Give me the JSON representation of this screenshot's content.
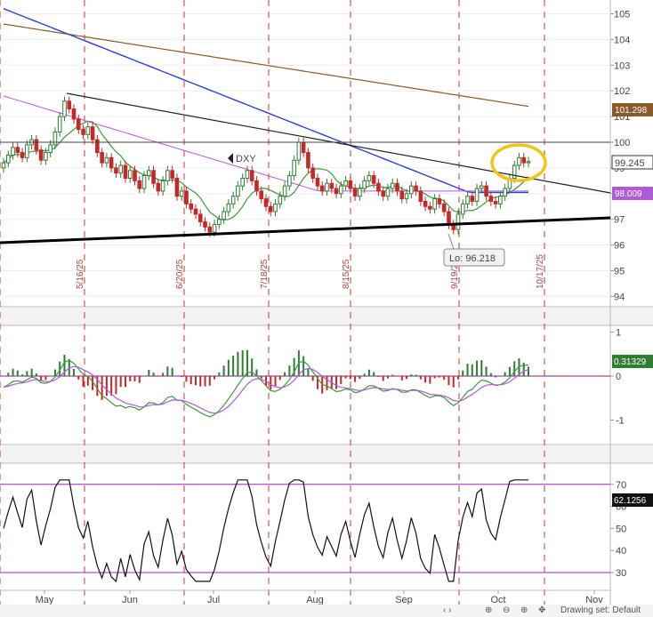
{
  "chart_data": [
    {
      "type": "candlestick",
      "symbol": "DXY",
      "y_ticks": [
        "94",
        "95",
        "96",
        "97",
        "98",
        "99",
        "100",
        "101",
        "102",
        "103",
        "104",
        "105"
      ],
      "last_price": "99.245",
      "ma_value": "98.009",
      "ma_long_value": "101.298",
      "low_label": "Lo: 96.218",
      "resistance_level": 100,
      "date_markers": [
        "5/16/25",
        "6/20/25",
        "7/18/25",
        "8/15/25",
        "9/19/25",
        "10/17/25"
      ],
      "closes": [
        99.2,
        99.5,
        99.8,
        99.6,
        99.4,
        99.9,
        100.1,
        99.7,
        99.3,
        99.6,
        99.9,
        100.4,
        101.0,
        101.6,
        101.3,
        100.9,
        100.5,
        100.3,
        100.6,
        100.1,
        99.6,
        99.2,
        99.4,
        99.0,
        98.8,
        99.1,
        98.6,
        98.9,
        98.5,
        98.2,
        98.7,
        98.9,
        98.4,
        98.1,
        98.5,
        98.9,
        98.6,
        97.9,
        98.1,
        97.6,
        97.4,
        97.2,
        96.9,
        96.7,
        96.5,
        96.8,
        97.0,
        97.3,
        97.6,
        97.9,
        98.3,
        98.6,
        98.9,
        98.5,
        98.1,
        97.8,
        97.5,
        97.3,
        97.6,
        97.9,
        98.3,
        98.7,
        99.3,
        100.0,
        99.6,
        99.0,
        98.6,
        98.3,
        98.1,
        98.4,
        98.2,
        98.0,
        98.3,
        98.5,
        98.2,
        97.9,
        98.2,
        98.5,
        98.7,
        98.4,
        98.1,
        97.9,
        98.2,
        98.4,
        98.1,
        97.8,
        98.0,
        98.3,
        98.1,
        97.7,
        97.5,
        97.4,
        97.8,
        97.6,
        97.3,
        96.8,
        96.6,
        97.2,
        97.6,
        97.9,
        97.7,
        98.2,
        98.3,
        97.9,
        97.7,
        97.6,
        97.9,
        98.2,
        98.6,
        99.1,
        99.4,
        99.2,
        99.25
      ],
      "x_labels": [
        "May",
        "Jun",
        "Jul",
        "Aug",
        "Sep",
        "Oct",
        "Nov"
      ]
    },
    {
      "type": "macd",
      "y_ticks": [
        "1",
        "0",
        "-1"
      ],
      "last_value": "0.31329"
    },
    {
      "type": "line",
      "indicator": "rsi",
      "y_ticks": [
        "30",
        "40",
        "50",
        "60",
        "70"
      ],
      "levels": [
        30,
        70
      ],
      "last_value": "62.1256"
    }
  ],
  "colors": {
    "up": "#2e7d32",
    "down": "#c62828",
    "ma_short": "#3a9a3a",
    "ma_mid": "#b05bd6",
    "ma_blue": "#2d3fd8",
    "ma_long": "#8a5a2b",
    "highlight": "#f0c419",
    "grid_dash": "#cc3333"
  },
  "bottom_bar": {
    "drawing_set": "Drawing set: Default"
  }
}
